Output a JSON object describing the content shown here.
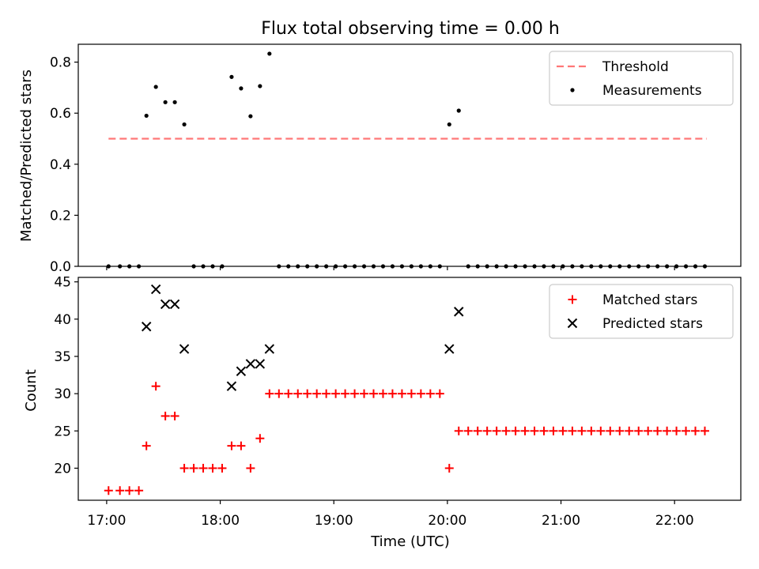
{
  "figure": {
    "title": "Flux total observing time = 0.00 h",
    "x_label": "Time (UTC)",
    "x_ticks": [
      "17:00",
      "18:00",
      "19:00",
      "20:00",
      "21:00",
      "22:00"
    ]
  },
  "chart_data": [
    {
      "type": "scatter",
      "title": "Flux total observing time = 0.00 h",
      "xlabel": "Time (UTC)",
      "ylabel": "Matched/Predicted stars",
      "ylim": [
        0,
        0.87
      ],
      "xlim": [
        "16:45",
        "22:35"
      ],
      "y_ticks": [
        "0.0",
        "0.2",
        "0.4",
        "0.6",
        "0.8"
      ],
      "legend_position": "top-right",
      "series": [
        {
          "name": "Threshold",
          "kind": "dashed-line",
          "color": "#ff7777",
          "x": [
            "17:01",
            "22:17"
          ],
          "y": [
            0.5,
            0.5
          ]
        },
        {
          "name": "Measurements",
          "kind": "points",
          "color": "#000000",
          "x": [
            "17:01",
            "17:07",
            "17:12",
            "17:17",
            "17:21",
            "17:26",
            "17:31",
            "17:36",
            "17:41",
            "17:46",
            "17:51",
            "17:56",
            "18:01",
            "18:06",
            "18:11",
            "18:16",
            "18:21",
            "18:26",
            "18:31",
            "18:36",
            "18:41",
            "18:46",
            "18:51",
            "18:56",
            "19:01",
            "19:06",
            "19:11",
            "19:16",
            "19:21",
            "19:26",
            "19:31",
            "19:36",
            "19:41",
            "19:46",
            "19:51",
            "19:56",
            "20:01",
            "20:06",
            "20:11",
            "20:16",
            "20:21",
            "20:26",
            "20:31",
            "20:36",
            "20:41",
            "20:46",
            "20:51",
            "20:56",
            "21:01",
            "21:06",
            "21:11",
            "21:16",
            "21:21",
            "21:26",
            "21:31",
            "21:36",
            "21:41",
            "21:46",
            "21:51",
            "21:56",
            "22:01",
            "22:06",
            "22:11",
            "22:16"
          ],
          "y": [
            0.0,
            0.0,
            0.0,
            0.0,
            0.59,
            0.703,
            0.643,
            0.643,
            0.556,
            0.0,
            0.0,
            0.0,
            0.0,
            0.742,
            0.697,
            0.588,
            0.706,
            0.833,
            0.0,
            0.0,
            0.0,
            0.0,
            0.0,
            0.0,
            0.0,
            0.0,
            0.0,
            0.0,
            0.0,
            0.0,
            0.0,
            0.0,
            0.0,
            0.0,
            0.0,
            0.0,
            0.556,
            0.61,
            0.0,
            0.0,
            0.0,
            0.0,
            0.0,
            0.0,
            0.0,
            0.0,
            0.0,
            0.0,
            0.0,
            0.0,
            0.0,
            0.0,
            0.0,
            0.0,
            0.0,
            0.0,
            0.0,
            0.0,
            0.0,
            0.0,
            0.0,
            0.0,
            0.0,
            0.0
          ]
        }
      ]
    },
    {
      "type": "scatter",
      "xlabel": "Time (UTC)",
      "ylabel": "Count",
      "ylim": [
        15.7,
        45.6
      ],
      "xlim": [
        "16:45",
        "22:35"
      ],
      "y_ticks": [
        "20",
        "25",
        "30",
        "35",
        "40",
        "45"
      ],
      "legend_position": "top-right",
      "series": [
        {
          "name": "Matched stars",
          "kind": "plus",
          "color": "#ff0000",
          "x": [
            "17:01",
            "17:07",
            "17:12",
            "17:17",
            "17:21",
            "17:26",
            "17:31",
            "17:36",
            "17:41",
            "17:46",
            "17:51",
            "17:56",
            "18:01",
            "18:06",
            "18:11",
            "18:16",
            "18:21",
            "18:26",
            "18:31",
            "18:36",
            "18:41",
            "18:46",
            "18:51",
            "18:56",
            "19:01",
            "19:06",
            "19:11",
            "19:16",
            "19:21",
            "19:26",
            "19:31",
            "19:36",
            "19:41",
            "19:46",
            "19:51",
            "19:56",
            "20:01",
            "20:06",
            "20:11",
            "20:16",
            "20:21",
            "20:26",
            "20:31",
            "20:36",
            "20:41",
            "20:46",
            "20:51",
            "20:56",
            "21:01",
            "21:06",
            "21:11",
            "21:16",
            "21:21",
            "21:26",
            "21:31",
            "21:36",
            "21:41",
            "21:46",
            "21:51",
            "21:56",
            "22:01",
            "22:06",
            "22:11",
            "22:16"
          ],
          "y": [
            17,
            17,
            17,
            17,
            23,
            31,
            27,
            27,
            20,
            20,
            20,
            20,
            20,
            23,
            23,
            20,
            24,
            30,
            30,
            30,
            30,
            30,
            30,
            30,
            30,
            30,
            30,
            30,
            30,
            30,
            30,
            30,
            30,
            30,
            30,
            30,
            20,
            25,
            25,
            25,
            25,
            25,
            25,
            25,
            25,
            25,
            25,
            25,
            25,
            25,
            25,
            25,
            25,
            25,
            25,
            25,
            25,
            25,
            25,
            25,
            25,
            25,
            25,
            25
          ]
        },
        {
          "name": "Predicted stars",
          "kind": "cross",
          "color": "#000000",
          "x": [
            "17:21",
            "17:26",
            "17:31",
            "17:36",
            "17:41",
            "18:06",
            "18:11",
            "18:16",
            "18:21",
            "18:26",
            "20:01",
            "20:06"
          ],
          "y": [
            39,
            44,
            42,
            42,
            36,
            31,
            33,
            34,
            34,
            36,
            36,
            41
          ]
        }
      ]
    }
  ]
}
